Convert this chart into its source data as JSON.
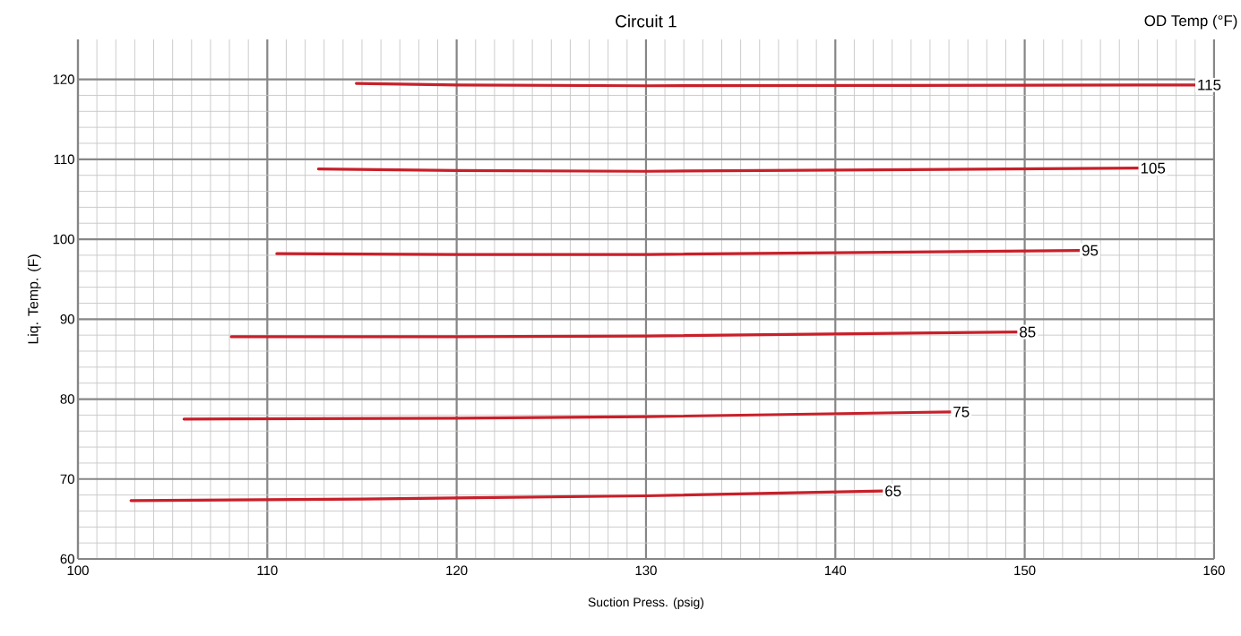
{
  "chart_data": {
    "type": "line",
    "title": "Circuit 1",
    "xlabel": "Suction Press. (psig)",
    "ylabel": "Liq. Temp. (F)",
    "legend_title": "OD Temp (°F)",
    "xlim": [
      100,
      160
    ],
    "ylim": [
      60,
      125
    ],
    "xticks": [
      100,
      110,
      120,
      130,
      140,
      150,
      160
    ],
    "yticks": [
      60,
      70,
      80,
      90,
      100,
      110,
      120
    ],
    "grid": true,
    "marker": "none",
    "line_style": "solid",
    "series": [
      {
        "name": "65",
        "color": "#c8202a",
        "x": [
          102.8,
          115,
          130,
          142.5
        ],
        "values": [
          67.3,
          67.5,
          67.9,
          68.5
        ]
      },
      {
        "name": "75",
        "color": "#c8202a",
        "x": [
          105.6,
          120,
          130,
          146.1
        ],
        "values": [
          77.5,
          77.6,
          77.8,
          78.4
        ]
      },
      {
        "name": "85",
        "color": "#c8202a",
        "x": [
          108.1,
          120,
          130,
          149.6
        ],
        "values": [
          87.8,
          87.8,
          87.9,
          88.4
        ]
      },
      {
        "name": "95",
        "color": "#c8202a",
        "x": [
          110.5,
          120,
          130,
          152.9
        ],
        "values": [
          98.2,
          98.1,
          98.1,
          98.6
        ]
      },
      {
        "name": "105",
        "color": "#c8202a",
        "x": [
          112.7,
          120,
          130,
          156.0
        ],
        "values": [
          108.8,
          108.6,
          108.5,
          108.9
        ]
      },
      {
        "name": "115",
        "color": "#c8202a",
        "x": [
          114.7,
          120,
          130,
          159.0
        ],
        "values": [
          119.5,
          119.3,
          119.2,
          119.3
        ]
      }
    ]
  }
}
